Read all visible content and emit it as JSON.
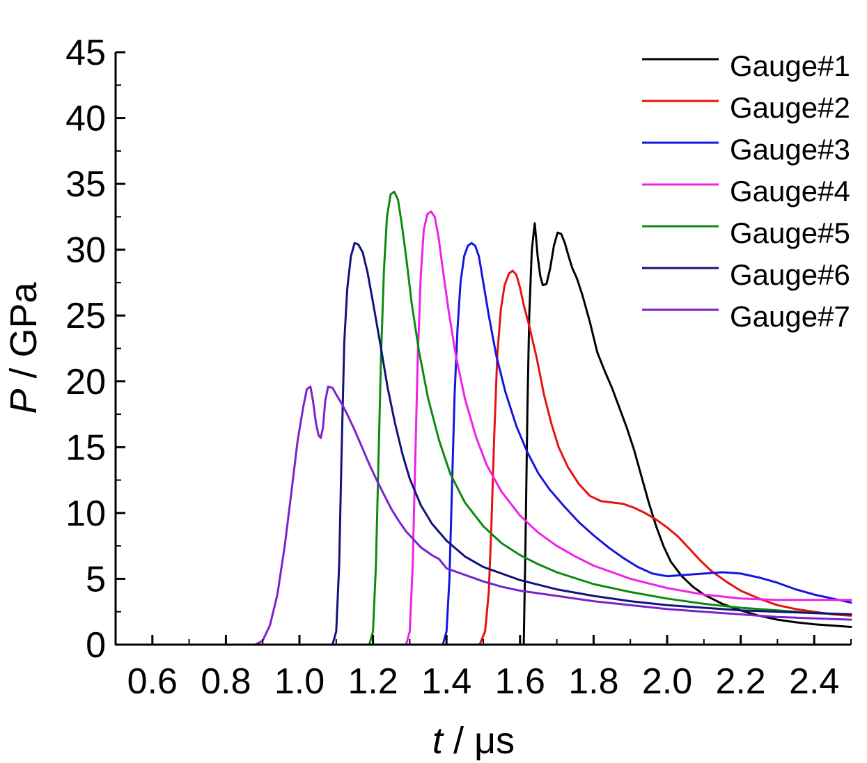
{
  "chart_data": {
    "type": "line",
    "xlabel": {
      "var": "t",
      "rest": " / μs"
    },
    "ylabel": {
      "var": "P",
      "rest": " / GPa"
    },
    "xlim": [
      0.5,
      2.5
    ],
    "ylim": [
      0,
      45
    ],
    "xticks": [
      0.6,
      0.8,
      1.0,
      1.2,
      1.4,
      1.6,
      1.8,
      2.0,
      2.2,
      2.4
    ],
    "xtick_labels": [
      "0.6",
      "0.8",
      "1.0",
      "1.2",
      "1.4",
      "1.6",
      "1.8",
      "2.0",
      "2.2",
      "2.4"
    ],
    "yticks": [
      0,
      5,
      10,
      15,
      20,
      25,
      30,
      35,
      40,
      45
    ],
    "ytick_labels": [
      "0",
      "5",
      "10",
      "15",
      "20",
      "25",
      "30",
      "35",
      "40",
      "45"
    ],
    "grid": false,
    "legend_position": "top-right",
    "series": [
      {
        "name": "Gauge#1",
        "color": "#000000",
        "points": [
          [
            0.5,
            0
          ],
          [
            1.6,
            0
          ],
          [
            1.61,
            0
          ],
          [
            1.615,
            8
          ],
          [
            1.62,
            18
          ],
          [
            1.625,
            25
          ],
          [
            1.632,
            30
          ],
          [
            1.64,
            32
          ],
          [
            1.648,
            29.5
          ],
          [
            1.655,
            28
          ],
          [
            1.662,
            27.3
          ],
          [
            1.672,
            27.4
          ],
          [
            1.682,
            28.6
          ],
          [
            1.692,
            30.3
          ],
          [
            1.702,
            31.3
          ],
          [
            1.712,
            31.2
          ],
          [
            1.722,
            30.5
          ],
          [
            1.732,
            29.5
          ],
          [
            1.742,
            28.6
          ],
          [
            1.755,
            27.8
          ],
          [
            1.77,
            26.5
          ],
          [
            1.79,
            24.5
          ],
          [
            1.81,
            22.2
          ],
          [
            1.83,
            20.8
          ],
          [
            1.85,
            19.5
          ],
          [
            1.87,
            18
          ],
          [
            1.89,
            16.5
          ],
          [
            1.91,
            14.8
          ],
          [
            1.93,
            12.8
          ],
          [
            1.95,
            10.8
          ],
          [
            1.97,
            9
          ],
          [
            1.99,
            7.5
          ],
          [
            2.01,
            6.3
          ],
          [
            2.04,
            5.2
          ],
          [
            2.07,
            4.4
          ],
          [
            2.1,
            3.8
          ],
          [
            2.15,
            3.1
          ],
          [
            2.2,
            2.6
          ],
          [
            2.25,
            2.2
          ],
          [
            2.3,
            1.9
          ],
          [
            2.35,
            1.7
          ],
          [
            2.4,
            1.55
          ],
          [
            2.45,
            1.45
          ],
          [
            2.5,
            1.35
          ]
        ]
      },
      {
        "name": "Gauge#2",
        "color": "#e81111",
        "points": [
          [
            0.5,
            0
          ],
          [
            1.49,
            0
          ],
          [
            1.505,
            1
          ],
          [
            1.515,
            4
          ],
          [
            1.522,
            9
          ],
          [
            1.53,
            16
          ],
          [
            1.538,
            22
          ],
          [
            1.548,
            25.5
          ],
          [
            1.558,
            27.3
          ],
          [
            1.57,
            28.2
          ],
          [
            1.58,
            28.4
          ],
          [
            1.59,
            28.1
          ],
          [
            1.6,
            27.1
          ],
          [
            1.61,
            25.8
          ],
          [
            1.625,
            24.2
          ],
          [
            1.645,
            21.8
          ],
          [
            1.665,
            19
          ],
          [
            1.685,
            16.8
          ],
          [
            1.705,
            15
          ],
          [
            1.73,
            13.5
          ],
          [
            1.76,
            12.2
          ],
          [
            1.79,
            11.3
          ],
          [
            1.82,
            10.9
          ],
          [
            1.85,
            10.8
          ],
          [
            1.88,
            10.7
          ],
          [
            1.91,
            10.4
          ],
          [
            1.94,
            10
          ],
          [
            1.97,
            9.5
          ],
          [
            2.0,
            8.9
          ],
          [
            2.03,
            8.2
          ],
          [
            2.06,
            7.3
          ],
          [
            2.09,
            6.4
          ],
          [
            2.12,
            5.6
          ],
          [
            2.16,
            4.8
          ],
          [
            2.2,
            4.1
          ],
          [
            2.25,
            3.5
          ],
          [
            2.3,
            3
          ],
          [
            2.35,
            2.7
          ],
          [
            2.4,
            2.5
          ],
          [
            2.45,
            2.3
          ],
          [
            2.5,
            2.2
          ]
        ]
      },
      {
        "name": "Gauge#3",
        "color": "#1515e0",
        "points": [
          [
            0.5,
            0
          ],
          [
            1.39,
            0
          ],
          [
            1.4,
            1
          ],
          [
            1.408,
            5
          ],
          [
            1.415,
            12
          ],
          [
            1.422,
            19
          ],
          [
            1.43,
            24
          ],
          [
            1.438,
            27.5
          ],
          [
            1.448,
            29.5
          ],
          [
            1.458,
            30.3
          ],
          [
            1.468,
            30.5
          ],
          [
            1.478,
            30.3
          ],
          [
            1.488,
            29.5
          ],
          [
            1.5,
            27.5
          ],
          [
            1.515,
            25
          ],
          [
            1.535,
            22
          ],
          [
            1.56,
            19.2
          ],
          [
            1.59,
            16.6
          ],
          [
            1.62,
            14.6
          ],
          [
            1.65,
            13
          ],
          [
            1.68,
            11.8
          ],
          [
            1.72,
            10.5
          ],
          [
            1.76,
            9.3
          ],
          [
            1.8,
            8.3
          ],
          [
            1.84,
            7.4
          ],
          [
            1.88,
            6.6
          ],
          [
            1.92,
            5.9
          ],
          [
            1.96,
            5.4
          ],
          [
            2.0,
            5.2
          ],
          [
            2.05,
            5.3
          ],
          [
            2.1,
            5.4
          ],
          [
            2.15,
            5.5
          ],
          [
            2.2,
            5.4
          ],
          [
            2.25,
            5.1
          ],
          [
            2.3,
            4.7
          ],
          [
            2.35,
            4.2
          ],
          [
            2.4,
            3.8
          ],
          [
            2.45,
            3.5
          ],
          [
            2.5,
            3.2
          ]
        ]
      },
      {
        "name": "Gauge#4",
        "color": "#f021e8",
        "points": [
          [
            0.5,
            0
          ],
          [
            1.29,
            0
          ],
          [
            1.3,
            1
          ],
          [
            1.308,
            6
          ],
          [
            1.315,
            14
          ],
          [
            1.322,
            22
          ],
          [
            1.33,
            28
          ],
          [
            1.338,
            31.5
          ],
          [
            1.348,
            32.7
          ],
          [
            1.358,
            32.9
          ],
          [
            1.368,
            32.5
          ],
          [
            1.378,
            31
          ],
          [
            1.39,
            28.5
          ],
          [
            1.405,
            25.5
          ],
          [
            1.425,
            22
          ],
          [
            1.45,
            18.7
          ],
          [
            1.48,
            15.8
          ],
          [
            1.51,
            13.6
          ],
          [
            1.55,
            11.6
          ],
          [
            1.6,
            9.8
          ],
          [
            1.65,
            8.5
          ],
          [
            1.7,
            7.5
          ],
          [
            1.75,
            6.7
          ],
          [
            1.8,
            6
          ],
          [
            1.9,
            5
          ],
          [
            2.0,
            4.3
          ],
          [
            2.1,
            3.8
          ],
          [
            2.2,
            3.5
          ],
          [
            2.3,
            3.4
          ],
          [
            2.4,
            3.4
          ],
          [
            2.5,
            3.4
          ]
        ]
      },
      {
        "name": "Gauge#5",
        "color": "#0d8a0d",
        "points": [
          [
            0.5,
            0
          ],
          [
            1.19,
            0
          ],
          [
            1.2,
            1
          ],
          [
            1.208,
            6
          ],
          [
            1.215,
            14
          ],
          [
            1.222,
            22
          ],
          [
            1.23,
            28.5
          ],
          [
            1.238,
            32.5
          ],
          [
            1.248,
            34.2
          ],
          [
            1.258,
            34.4
          ],
          [
            1.268,
            33.8
          ],
          [
            1.278,
            32
          ],
          [
            1.29,
            29.5
          ],
          [
            1.305,
            26
          ],
          [
            1.325,
            22.3
          ],
          [
            1.35,
            18.7
          ],
          [
            1.38,
            15.5
          ],
          [
            1.41,
            13
          ],
          [
            1.45,
            10.8
          ],
          [
            1.5,
            9
          ],
          [
            1.55,
            7.7
          ],
          [
            1.6,
            6.8
          ],
          [
            1.65,
            6.1
          ],
          [
            1.7,
            5.5
          ],
          [
            1.8,
            4.6
          ],
          [
            1.9,
            4
          ],
          [
            2.0,
            3.5
          ],
          [
            2.1,
            3.1
          ],
          [
            2.2,
            2.8
          ],
          [
            2.3,
            2.6
          ],
          [
            2.4,
            2.4
          ],
          [
            2.5,
            2.3
          ]
        ]
      },
      {
        "name": "Gauge#6",
        "color": "#12137a",
        "points": [
          [
            0.5,
            0
          ],
          [
            1.09,
            0
          ],
          [
            1.1,
            1
          ],
          [
            1.108,
            6
          ],
          [
            1.115,
            15
          ],
          [
            1.122,
            23
          ],
          [
            1.13,
            27
          ],
          [
            1.14,
            29.5
          ],
          [
            1.15,
            30.5
          ],
          [
            1.16,
            30.4
          ],
          [
            1.172,
            29.8
          ],
          [
            1.185,
            28.3
          ],
          [
            1.2,
            26
          ],
          [
            1.22,
            22.8
          ],
          [
            1.24,
            19.5
          ],
          [
            1.26,
            16.8
          ],
          [
            1.28,
            14.5
          ],
          [
            1.3,
            12.6
          ],
          [
            1.33,
            10.6
          ],
          [
            1.36,
            9.2
          ],
          [
            1.4,
            7.9
          ],
          [
            1.45,
            6.7
          ],
          [
            1.5,
            5.9
          ],
          [
            1.6,
            4.9
          ],
          [
            1.7,
            4.2
          ],
          [
            1.8,
            3.7
          ],
          [
            1.9,
            3.3
          ],
          [
            2.0,
            3
          ],
          [
            2.1,
            2.8
          ],
          [
            2.2,
            2.6
          ],
          [
            2.3,
            2.5
          ],
          [
            2.4,
            2.4
          ],
          [
            2.5,
            2.3
          ]
        ]
      },
      {
        "name": "Gauge#7",
        "color": "#7a22cc",
        "points": [
          [
            0.5,
            0
          ],
          [
            0.88,
            0
          ],
          [
            0.9,
            0.3
          ],
          [
            0.92,
            1.5
          ],
          [
            0.94,
            3.8
          ],
          [
            0.96,
            7.5
          ],
          [
            0.98,
            12
          ],
          [
            0.995,
            15.5
          ],
          [
            1.01,
            18
          ],
          [
            1.02,
            19.4
          ],
          [
            1.03,
            19.6
          ],
          [
            1.037,
            18.5
          ],
          [
            1.045,
            16.8
          ],
          [
            1.052,
            15.9
          ],
          [
            1.058,
            15.7
          ],
          [
            1.064,
            16.5
          ],
          [
            1.07,
            18.5
          ],
          [
            1.078,
            19.6
          ],
          [
            1.09,
            19.5
          ],
          [
            1.1,
            19
          ],
          [
            1.115,
            18.3
          ],
          [
            1.13,
            17.5
          ],
          [
            1.15,
            16.3
          ],
          [
            1.17,
            15
          ],
          [
            1.19,
            13.7
          ],
          [
            1.21,
            12.5
          ],
          [
            1.23,
            11.4
          ],
          [
            1.25,
            10.3
          ],
          [
            1.27,
            9.4
          ],
          [
            1.29,
            8.6
          ],
          [
            1.31,
            8
          ],
          [
            1.33,
            7.4
          ],
          [
            1.36,
            6.8
          ],
          [
            1.38,
            6.5
          ],
          [
            1.4,
            5.8
          ],
          [
            1.42,
            5.6
          ],
          [
            1.45,
            5.3
          ],
          [
            1.5,
            4.8
          ],
          [
            1.55,
            4.4
          ],
          [
            1.6,
            4.1
          ],
          [
            1.7,
            3.7
          ],
          [
            1.8,
            3.3
          ],
          [
            1.9,
            3
          ],
          [
            2.0,
            2.7
          ],
          [
            2.1,
            2.5
          ],
          [
            2.2,
            2.3
          ],
          [
            2.3,
            2.1
          ],
          [
            2.4,
            2
          ],
          [
            2.5,
            1.9
          ]
        ]
      }
    ]
  }
}
